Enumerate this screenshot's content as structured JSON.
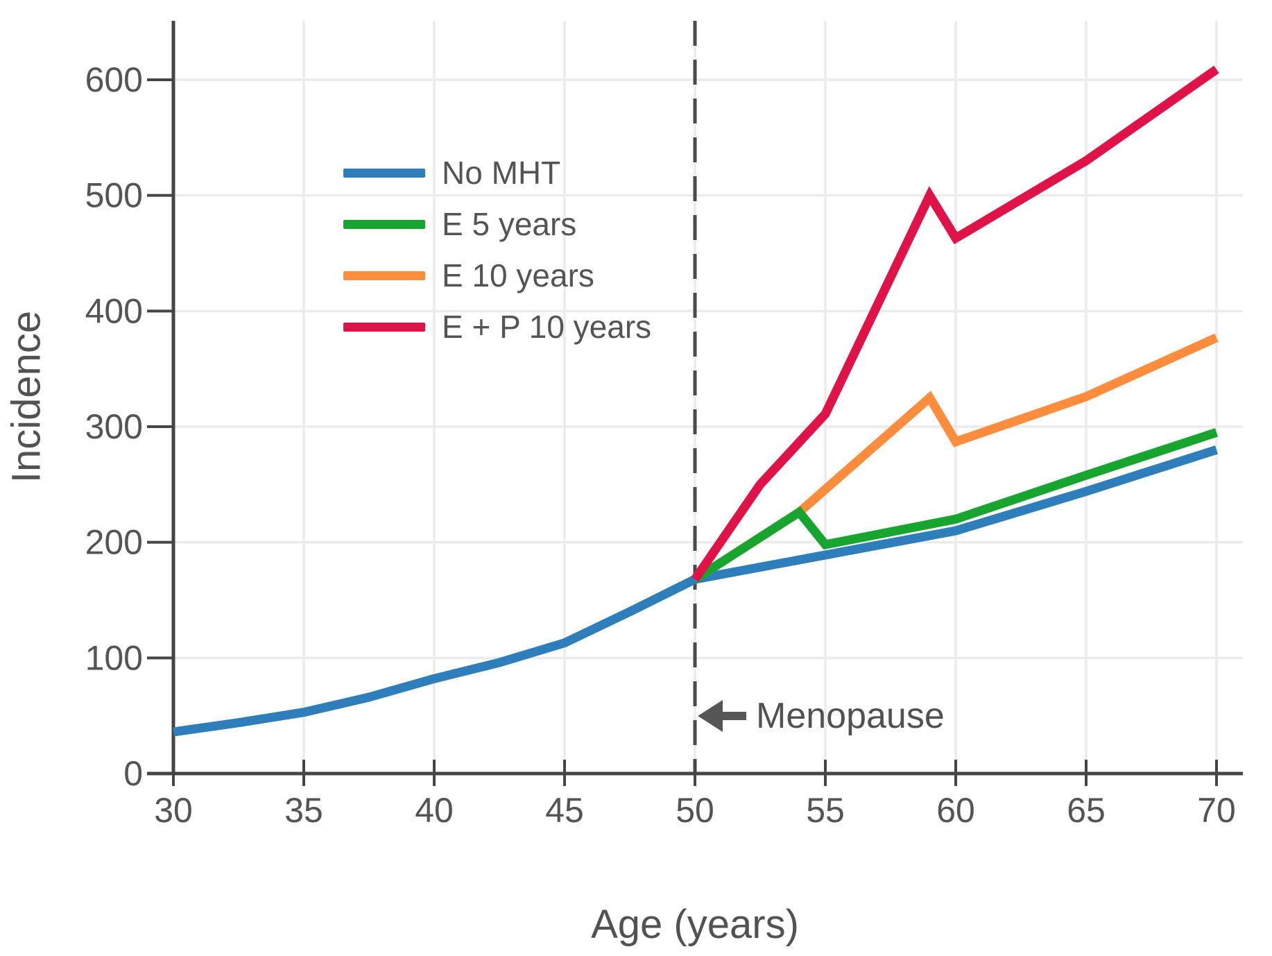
{
  "chart_data": {
    "type": "line",
    "title": "",
    "xlabel": "Age (years)",
    "ylabel": "Incidence",
    "xlim": [
      30,
      70
    ],
    "ylim": [
      0,
      651
    ],
    "xticks": [
      30,
      35,
      40,
      45,
      50,
      55,
      60,
      65,
      70
    ],
    "yticks": [
      0,
      100,
      200,
      300,
      400,
      500,
      600
    ],
    "grid": true,
    "legend_position": "upper-left-inside",
    "series": [
      {
        "name": "No MHT",
        "color": "#2E7EBC",
        "points": [
          [
            30,
            36
          ],
          [
            32.5,
            44
          ],
          [
            35,
            53
          ],
          [
            37.5,
            66
          ],
          [
            40,
            82
          ],
          [
            42.5,
            96
          ],
          [
            45,
            113
          ],
          [
            47.5,
            140
          ],
          [
            50,
            168
          ],
          [
            55,
            189
          ],
          [
            60,
            210
          ],
          [
            65,
            244
          ],
          [
            70,
            280
          ]
        ]
      },
      {
        "name": "E 10 years",
        "color": "#FD8D3C",
        "points": [
          [
            50,
            168
          ],
          [
            54,
            226
          ],
          [
            59,
            325
          ],
          [
            60,
            287
          ],
          [
            65,
            326
          ],
          [
            70,
            377
          ]
        ]
      },
      {
        "name": "E 5 years",
        "color": "#18A52F",
        "points": [
          [
            50,
            168
          ],
          [
            54,
            226
          ],
          [
            55,
            198
          ],
          [
            60,
            220
          ],
          [
            65,
            258
          ],
          [
            70,
            295
          ]
        ]
      },
      {
        "name": "E + P 10 years",
        "color": "#E01349",
        "points": [
          [
            50,
            168
          ],
          [
            52.5,
            250
          ],
          [
            55,
            311
          ],
          [
            59,
            500
          ],
          [
            60,
            463
          ],
          [
            65,
            530
          ],
          [
            70,
            609
          ]
        ]
      }
    ],
    "annotations": {
      "menopause": {
        "label": "Menopause",
        "age": 50
      }
    }
  },
  "axes": {
    "x_title": "Age (years)",
    "y_title": "Incidence"
  },
  "legend": {
    "items": [
      {
        "label": "No MHT",
        "color": "#2E7EBC"
      },
      {
        "label": "E 5 years",
        "color": "#18A52F"
      },
      {
        "label": "E 10 years",
        "color": "#FD8D3C"
      },
      {
        "label": "E + P 10 years",
        "color": "#E01349"
      }
    ]
  },
  "annotation": {
    "menopause_label": "Menopause"
  },
  "style": {
    "axis_color": "#454545",
    "grid_color": "#ebebeb",
    "tick_label_color": "#545454",
    "dashed_line_color": "#4a4a4a",
    "line_width": 13
  }
}
